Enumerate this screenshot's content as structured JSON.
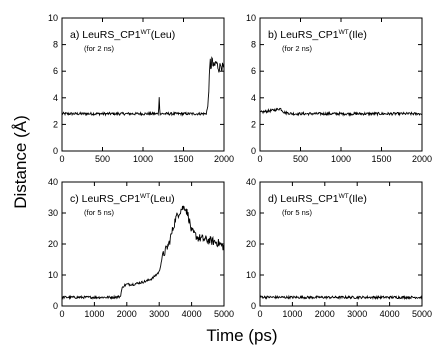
{
  "figure": {
    "ylabel": "Distance (Å)",
    "xlabel": "Time (ps)"
  },
  "chart_data": [
    {
      "type": "line",
      "panel": "a",
      "label_prefix": "a) LeuRS_CP1",
      "label_sup": "WT",
      "label_suffix": "(Leu)",
      "note": "(for 2 ns)",
      "xlim": [
        0,
        2000
      ],
      "ylim": [
        0,
        10
      ],
      "xticks": [
        0,
        500,
        1000,
        1500,
        2000
      ],
      "yticks": [
        0,
        2,
        4,
        6,
        8,
        10
      ],
      "color": "#000000",
      "series": [
        {
          "x": [
            0,
            200,
            400,
            600,
            800,
            1000,
            1150,
            1190,
            1200,
            1210,
            1400,
            1600,
            1780,
            1790,
            1800,
            1810,
            1820,
            1830,
            1840,
            1850,
            1860,
            1880,
            1900,
            1920,
            1940,
            1960,
            1980,
            2000
          ],
          "y": [
            2.8,
            2.8,
            2.8,
            2.8,
            2.8,
            2.8,
            2.8,
            2.8,
            4.0,
            2.8,
            2.8,
            2.8,
            2.8,
            3.1,
            3.3,
            4.5,
            5.5,
            6.8,
            6.2,
            6.9,
            6.5,
            6.3,
            6.7,
            6.4,
            6.2,
            6.5,
            6.3,
            6.2
          ]
        }
      ]
    },
    {
      "type": "line",
      "panel": "b",
      "label_prefix": "b) LeuRS_CP1",
      "label_sup": "WT",
      "label_suffix": "(Ile)",
      "note": "(for 2 ns)",
      "xlim": [
        0,
        2000
      ],
      "ylim": [
        0,
        10
      ],
      "xticks": [
        0,
        500,
        1000,
        1500,
        2000
      ],
      "yticks": [
        0,
        2,
        4,
        6,
        8,
        10
      ],
      "color": "#000000",
      "series": [
        {
          "x": [
            0,
            100,
            200,
            250,
            300,
            400,
            600,
            800,
            1000,
            1200,
            1400,
            1600,
            1800,
            2000
          ],
          "y": [
            2.9,
            3.0,
            3.1,
            3.2,
            2.9,
            2.8,
            2.8,
            2.8,
            2.8,
            2.8,
            2.8,
            2.8,
            2.8,
            2.8
          ]
        }
      ]
    },
    {
      "type": "line",
      "panel": "c",
      "label_prefix": "c) LeuRS_CP1",
      "label_sup": "WT",
      "label_suffix": "(Leu)",
      "note": "(for 5 ns)",
      "xlim": [
        0,
        5000
      ],
      "ylim": [
        0,
        40
      ],
      "xticks": [
        0,
        1000,
        2000,
        3000,
        4000,
        5000
      ],
      "yticks": [
        0,
        10,
        20,
        30,
        40
      ],
      "color": "#000000",
      "series": [
        {
          "x": [
            0,
            500,
            1000,
            1500,
            1800,
            1850,
            1900,
            2000,
            2200,
            2400,
            2600,
            2800,
            3000,
            3100,
            3200,
            3300,
            3400,
            3500,
            3600,
            3700,
            3800,
            3900,
            4000,
            4200,
            4400,
            4600,
            4800,
            5000
          ],
          "y": [
            2.8,
            2.8,
            2.8,
            2.8,
            3.0,
            5.5,
            6.5,
            7.0,
            7.0,
            7.5,
            8.0,
            9.0,
            11.0,
            16.0,
            18.0,
            20.0,
            24.0,
            28.0,
            30.0,
            31.5,
            32.0,
            29.0,
            24.0,
            22.0,
            21.5,
            21.0,
            20.5,
            19.0
          ]
        }
      ]
    },
    {
      "type": "line",
      "panel": "d",
      "label_prefix": "d) LeuRS_CP1",
      "label_sup": "WT",
      "label_suffix": "(Ile)",
      "note": "(for 5 ns)",
      "xlim": [
        0,
        5000
      ],
      "ylim": [
        0,
        40
      ],
      "xticks": [
        0,
        1000,
        2000,
        3000,
        4000,
        5000
      ],
      "yticks": [
        0,
        10,
        20,
        30,
        40
      ],
      "color": "#000000",
      "series": [
        {
          "x": [
            0,
            500,
            1000,
            1500,
            2000,
            2500,
            3000,
            3500,
            4000,
            4500,
            5000
          ],
          "y": [
            2.9,
            2.8,
            2.8,
            2.8,
            2.8,
            2.8,
            2.8,
            2.8,
            2.8,
            2.8,
            2.8
          ]
        }
      ]
    }
  ]
}
